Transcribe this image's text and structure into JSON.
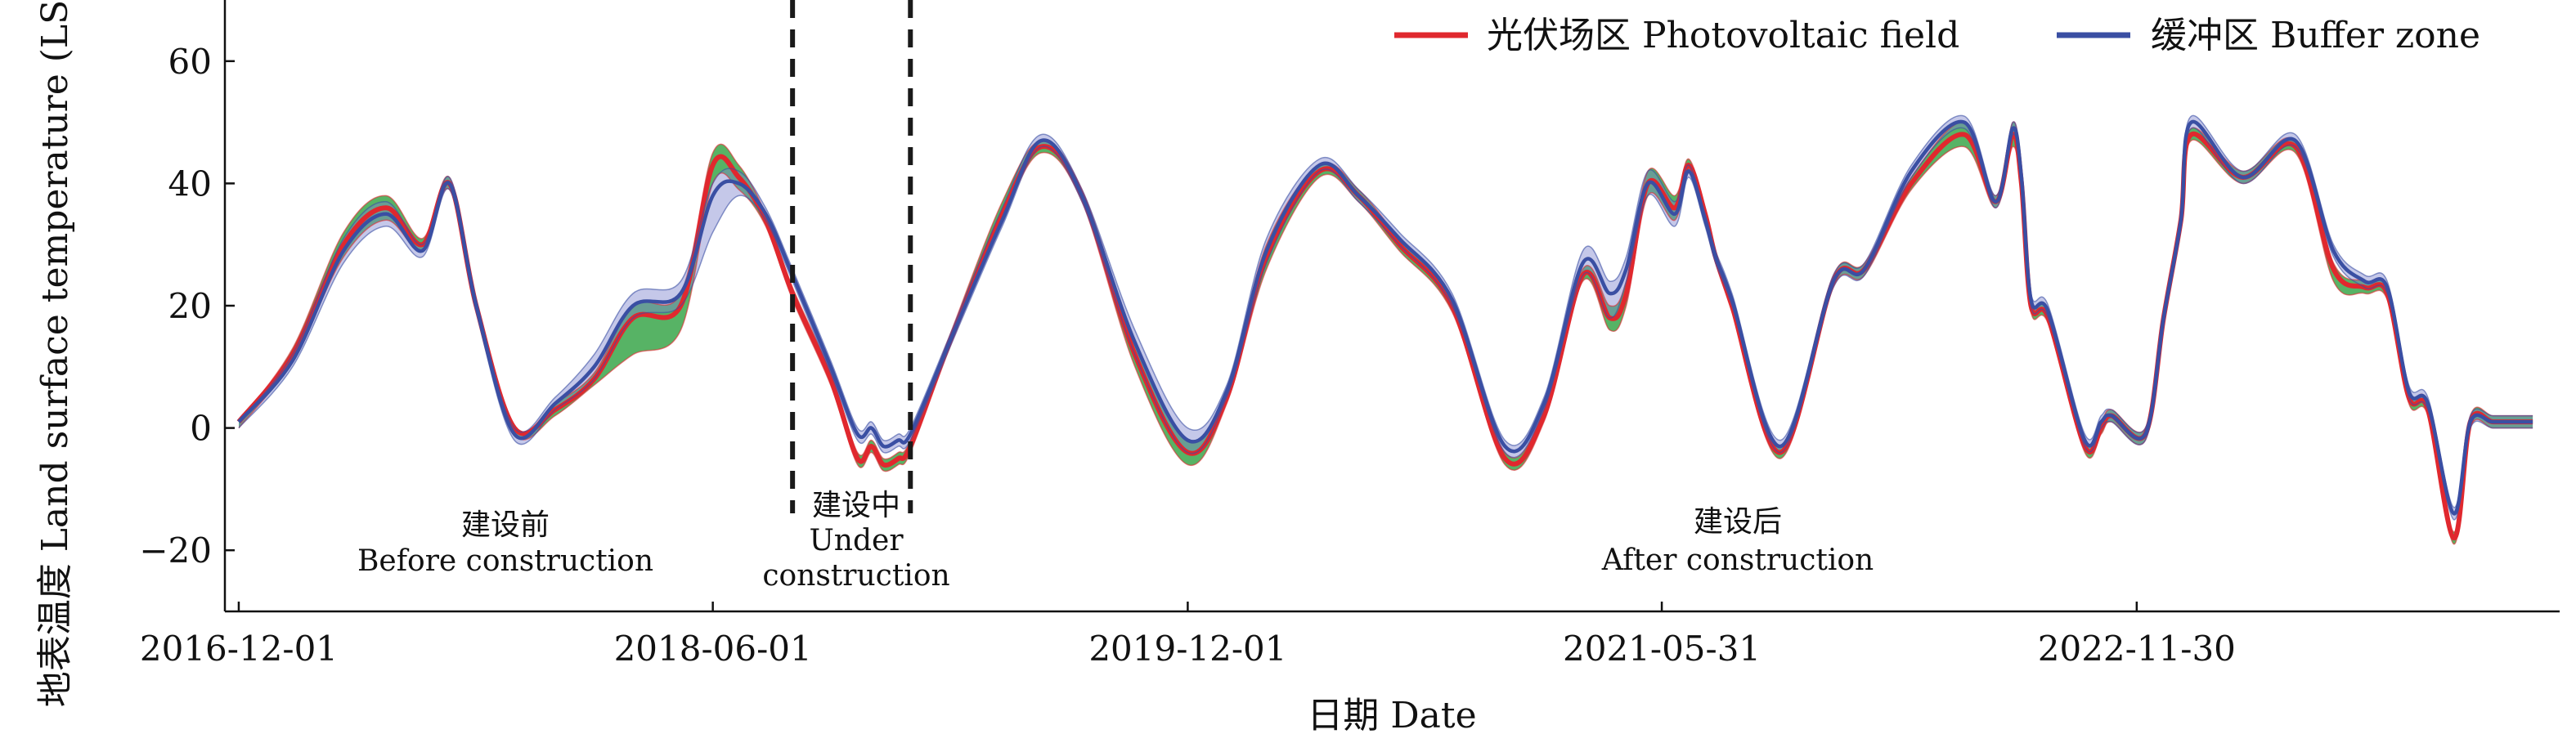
{
  "chart_data": {
    "type": "line",
    "xlabel": "日期 Date",
    "ylabel": "地表温度 Land surface temperature (LST)/°C",
    "x_type": "date",
    "xlim": [
      "2016-11-15",
      "2024-04-01"
    ],
    "ylim": [
      -30,
      70
    ],
    "x_ticks": [
      "2016-12-01",
      "2018-06-01",
      "2019-12-01",
      "2021-05-31",
      "2022-11-30"
    ],
    "y_ticks": [
      -20,
      0,
      20,
      40,
      60
    ],
    "grid": false,
    "legend_position": "top-right",
    "colors": {
      "pv_line": "#e0282e",
      "pv_band": "#3aa64a",
      "buffer_line": "#3a4fa3",
      "buffer_band": "#7f85cf",
      "divider": "#1a1a1a"
    },
    "construction_markers": [
      "2018-09-01",
      "2019-01-15"
    ],
    "phases": [
      {
        "label_zh": "建设前",
        "label_en": "Before construction"
      },
      {
        "label_zh": "建设中",
        "label_en_1": "Under",
        "label_en_2": "construction"
      },
      {
        "label_zh": "建设后",
        "label_en": "After construction"
      }
    ],
    "series": [
      {
        "name": "光伏场区 Photovoltaic field",
        "x": [
          "2016-12-01",
          "2017-02-01",
          "2017-04-01",
          "2017-05-20",
          "2017-07-01",
          "2017-08-01",
          "2017-09-01",
          "2017-10-15",
          "2017-12-01",
          "2018-01-15",
          "2018-03-01",
          "2018-04-25",
          "2018-06-01",
          "2018-07-01",
          "2018-08-01",
          "2018-09-01",
          "2018-10-15",
          "2018-11-15",
          "2018-12-01",
          "2018-12-15",
          "2019-01-01",
          "2019-01-15",
          "2019-03-01",
          "2019-05-01",
          "2019-06-15",
          "2019-08-01",
          "2019-10-01",
          "2019-12-01",
          "2020-01-15",
          "2020-03-01",
          "2020-05-01",
          "2020-06-15",
          "2020-08-01",
          "2020-10-01",
          "2020-12-01",
          "2021-01-15",
          "2021-03-01",
          "2021-04-01",
          "2021-04-20",
          "2021-05-15",
          "2021-06-15",
          "2021-07-01",
          "2021-07-20",
          "2021-08-01",
          "2021-08-20",
          "2021-10-15",
          "2021-12-15",
          "2022-01-20",
          "2022-03-15",
          "2022-05-15",
          "2022-06-20",
          "2022-07-10",
          "2022-07-20",
          "2022-07-31",
          "2022-08-20",
          "2022-10-01",
          "2022-10-20",
          "2022-11-01",
          "2022-12-10",
          "2022-12-31",
          "2023-01-20",
          "2023-02-01",
          "2023-04-01",
          "2023-06-01",
          "2023-07-15",
          "2023-08-20",
          "2023-09-15",
          "2023-10-10",
          "2023-11-01",
          "2023-12-01",
          "2023-12-20",
          "2024-01-15",
          "2024-02-15",
          "2024-03-01"
        ],
        "values": [
          1,
          12,
          30,
          36,
          30,
          40,
          20,
          0,
          3,
          8,
          18,
          20,
          43,
          41,
          34,
          22,
          8,
          -5,
          -3,
          -6,
          -5,
          -3,
          14,
          35,
          46,
          38,
          12,
          -4,
          5,
          28,
          42,
          38,
          30,
          20,
          -5,
          2,
          25,
          18,
          22,
          40,
          36,
          43,
          35,
          28,
          20,
          -4,
          24,
          26,
          40,
          48,
          37,
          48,
          40,
          20,
          18,
          -3,
          0,
          2,
          -1,
          18,
          34,
          48,
          41,
          46,
          26,
          23,
          22,
          5,
          3,
          -18,
          1,
          1,
          1,
          1
        ],
        "upper": [
          1,
          13,
          32,
          38,
          31,
          41,
          21,
          0,
          4,
          9,
          20,
          22,
          45,
          43,
          35,
          23,
          9,
          -4,
          -2,
          -5,
          -4,
          -2,
          15,
          37,
          47,
          39,
          14,
          -2,
          6,
          30,
          43,
          39,
          31,
          21,
          -4,
          3,
          26,
          20,
          24,
          42,
          38,
          44,
          36,
          29,
          21,
          -3,
          25,
          27,
          41,
          50,
          38,
          50,
          42,
          21,
          19,
          -2,
          1,
          3,
          0,
          19,
          35,
          49,
          42,
          47,
          27,
          24,
          23,
          6,
          4,
          -17,
          2,
          2,
          2,
          2
        ],
        "lower": [
          0,
          11,
          28,
          34,
          29,
          39,
          19,
          -1,
          2,
          7,
          12,
          16,
          40,
          39,
          33,
          21,
          7,
          -6,
          -4,
          -7,
          -6,
          -4,
          13,
          34,
          45,
          37,
          10,
          -6,
          4,
          26,
          41,
          37,
          29,
          19,
          -6,
          1,
          24,
          16,
          20,
          38,
          34,
          42,
          34,
          27,
          19,
          -5,
          23,
          25,
          39,
          46,
          36,
          46,
          38,
          19,
          17,
          -4,
          -1,
          1,
          -2,
          17,
          33,
          47,
          40,
          45,
          24,
          22,
          21,
          4,
          2,
          -19,
          0,
          0,
          0,
          0
        ]
      },
      {
        "name": "缓冲区 Buffer zone",
        "x": [
          "2016-12-01",
          "2017-02-01",
          "2017-04-01",
          "2017-05-20",
          "2017-07-01",
          "2017-08-01",
          "2017-09-01",
          "2017-10-15",
          "2017-12-01",
          "2018-01-15",
          "2018-03-01",
          "2018-04-25",
          "2018-06-01",
          "2018-07-01",
          "2018-08-01",
          "2018-09-01",
          "2018-10-15",
          "2018-11-15",
          "2018-12-01",
          "2018-12-15",
          "2019-01-01",
          "2019-01-15",
          "2019-03-01",
          "2019-05-01",
          "2019-06-15",
          "2019-08-01",
          "2019-10-01",
          "2019-12-01",
          "2020-01-15",
          "2020-03-01",
          "2020-05-01",
          "2020-06-15",
          "2020-08-01",
          "2020-10-01",
          "2020-12-01",
          "2021-01-15",
          "2021-03-01",
          "2021-04-01",
          "2021-04-20",
          "2021-05-15",
          "2021-06-15",
          "2021-07-01",
          "2021-07-20",
          "2021-08-01",
          "2021-08-20",
          "2021-10-15",
          "2021-12-15",
          "2022-01-20",
          "2022-03-15",
          "2022-05-15",
          "2022-06-20",
          "2022-07-10",
          "2022-07-20",
          "2022-07-31",
          "2022-08-20",
          "2022-10-01",
          "2022-10-20",
          "2022-11-01",
          "2022-12-10",
          "2022-12-31",
          "2023-01-20",
          "2023-02-01",
          "2023-04-01",
          "2023-06-01",
          "2023-07-15",
          "2023-08-20",
          "2023-09-15",
          "2023-10-10",
          "2023-11-01",
          "2023-12-01",
          "2023-12-20",
          "2024-01-15",
          "2024-02-15",
          "2024-03-01"
        ],
        "values": [
          1,
          11,
          29,
          35,
          29,
          40,
          20,
          -1,
          4,
          10,
          20,
          22,
          38,
          40,
          35,
          25,
          10,
          -1,
          0,
          -3,
          -2,
          -1,
          14,
          34,
          47,
          38,
          14,
          -2,
          6,
          29,
          43,
          38,
          31,
          21,
          -3,
          4,
          27,
          22,
          26,
          40,
          35,
          42,
          34,
          28,
          21,
          -3,
          24,
          26,
          42,
          50,
          37,
          49,
          41,
          21,
          19,
          -2,
          1,
          2,
          -1,
          18,
          34,
          50,
          41,
          47,
          29,
          24,
          23,
          6,
          4,
          -14,
          1,
          1,
          1,
          1
        ],
        "upper": [
          1,
          12,
          31,
          37,
          30,
          41,
          21,
          0,
          5,
          12,
          22,
          24,
          40,
          42,
          36,
          26,
          11,
          0,
          1,
          -2,
          -1,
          0,
          15,
          36,
          48,
          39,
          16,
          0,
          7,
          31,
          44,
          39,
          32,
          22,
          -2,
          5,
          29,
          24,
          28,
          42,
          37,
          43,
          35,
          29,
          22,
          -2,
          25,
          27,
          43,
          51,
          38,
          50,
          42,
          22,
          20,
          -1,
          2,
          3,
          0,
          19,
          35,
          51,
          42,
          48,
          30,
          25,
          24,
          7,
          5,
          -13,
          2,
          2,
          2,
          2
        ],
        "lower": [
          0,
          10,
          27,
          33,
          28,
          39,
          19,
          -2,
          3,
          8,
          18,
          20,
          32,
          38,
          34,
          24,
          9,
          -2,
          -1,
          -4,
          -3,
          -2,
          13,
          33,
          46,
          37,
          12,
          -4,
          5,
          27,
          42,
          37,
          30,
          20,
          -4,
          3,
          25,
          18,
          24,
          38,
          33,
          41,
          33,
          27,
          20,
          -4,
          23,
          25,
          41,
          49,
          36,
          48,
          40,
          20,
          18,
          -3,
          0,
          1,
          -2,
          17,
          33,
          49,
          40,
          46,
          28,
          23,
          22,
          5,
          3,
          -15,
          0,
          0,
          0,
          0
        ]
      }
    ]
  }
}
